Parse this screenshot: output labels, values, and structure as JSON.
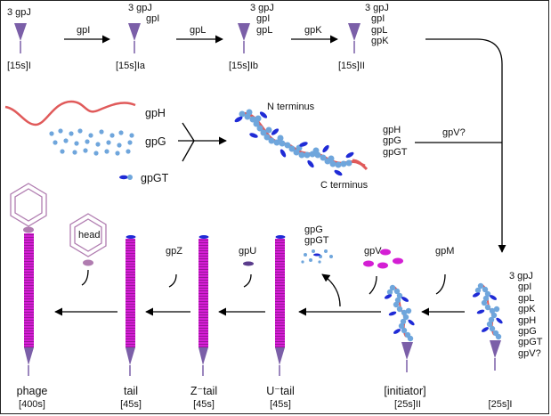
{
  "row1": {
    "s1": {
      "label_top": "3 gpJ",
      "name": "[15s]I"
    },
    "a1": "gpI",
    "s2": {
      "label_top": [
        "3 gpJ",
        "gpI"
      ],
      "name": "[15s]Ia"
    },
    "a2": "gpL",
    "s3": {
      "label_top": [
        "3 gpJ",
        "gpI",
        "gpL"
      ],
      "name": "[15s]Ib"
    },
    "a3": "gpK",
    "s4": {
      "label_top": [
        "3 gpJ",
        "gpI",
        "gpL",
        "gpK"
      ],
      "name": "[15s]II"
    }
  },
  "row2": {
    "gpH": "gpH",
    "gpG": "gpG",
    "gpGT": "gpGT",
    "n_terminus": "N terminus",
    "c_terminus": "C terminus",
    "right_labels": [
      "gpH",
      "gpG",
      "gpGT"
    ],
    "arrow_label": "gpV?"
  },
  "row3": {
    "phage": {
      "name": "phage",
      "s": "[400s]"
    },
    "tail": {
      "name": "tail",
      "s": "[45s]"
    },
    "ztail": {
      "name": "Z⁻tail",
      "s": "[45s]"
    },
    "utail": {
      "name": "U⁻tail",
      "s": "[45s]"
    },
    "initiator": {
      "name": "[initiator]",
      "s": "[25s]II"
    },
    "s25": {
      "s": "[25s]I"
    },
    "head": "head",
    "gpZ": "gpZ",
    "gpU": "gpU",
    "gpG_gpGT": [
      "gpG",
      "gpGT"
    ],
    "gpV": "gpV",
    "gpM": "gpM",
    "s25_labels": [
      "3 gpJ",
      "gpI",
      "gpL",
      "gpK",
      "gpH",
      "gpG",
      "gpGT",
      "gpV?"
    ]
  },
  "colors": {
    "tail_magenta": "#d41fd4",
    "stem_purple": "#7b5fa8",
    "head_outline": "#b07cb0",
    "protein_blue": "#6fa6dc",
    "dark_blue": "#1f2bd6",
    "tape_red": "#e05a5a"
  }
}
